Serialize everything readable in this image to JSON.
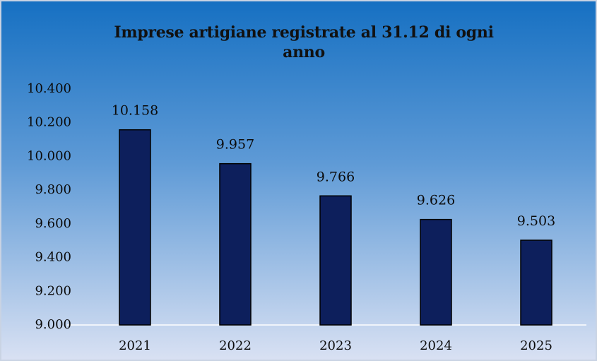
{
  "chart_data": {
    "type": "bar",
    "title": "Imprese artigiane registrate al 31.12 di ogni anno",
    "categories": [
      "2021",
      "2022",
      "2023",
      "2024",
      "2025"
    ],
    "values": [
      10158,
      9957,
      9766,
      9626,
      9503
    ],
    "value_labels": [
      "10.158",
      "9.957",
      "9.766",
      "9.626",
      "9.503"
    ],
    "color": "#0d1f5c",
    "ylim": [
      9000,
      10400
    ],
    "yticks": [
      {
        "value": 9000,
        "label": "9.000"
      },
      {
        "value": 9200,
        "label": "9.200"
      },
      {
        "value": 9400,
        "label": "9.400"
      },
      {
        "value": 9600,
        "label": "9.600"
      },
      {
        "value": 9800,
        "label": "9.800"
      },
      {
        "value": 10000,
        "label": "10.000"
      },
      {
        "value": 10200,
        "label": "10.200"
      },
      {
        "value": 10400,
        "label": "10.400"
      }
    ],
    "grid": false
  }
}
